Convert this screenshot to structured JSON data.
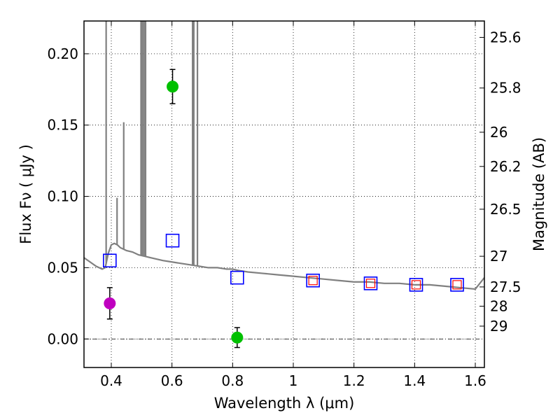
{
  "chart_data": {
    "type": "scatter",
    "xlabel": "Wavelength  λ (μm)",
    "ylabel": "Flux  Fν  ( μJy )",
    "y2label": "Magnitude (AB)",
    "xlim": [
      0.31,
      1.63
    ],
    "ylim": [
      -0.02,
      0.223
    ],
    "grid": true,
    "x_ticks": [
      0.4,
      0.6,
      0.8,
      1.0,
      1.2,
      1.4,
      1.6
    ],
    "x_tick_labels": [
      "0.4",
      "0.6",
      "0.8",
      "1",
      "1.2",
      "1.4",
      "1.6"
    ],
    "y_ticks": [
      0.0,
      0.05,
      0.1,
      0.15,
      0.2
    ],
    "y_tick_labels": [
      "0.00",
      "0.05",
      "0.10",
      "0.15",
      "0.20"
    ],
    "y2_ticks": [
      {
        "flux": 0.2115,
        "label": "25.6"
      },
      {
        "flux": 0.176,
        "label": "25.8"
      },
      {
        "flux": 0.145,
        "label": "26"
      },
      {
        "flux": 0.121,
        "label": "26.2"
      },
      {
        "flux": 0.091,
        "label": "26.5"
      },
      {
        "flux": 0.058,
        "label": "27"
      },
      {
        "flux": 0.0365,
        "label": "27.5"
      },
      {
        "flux": 0.023,
        "label": "28"
      },
      {
        "flux": 0.009,
        "label": "29"
      }
    ],
    "series": [
      {
        "name": "model spectrum",
        "kind": "line",
        "color": "#808080",
        "x": [
          0.31,
          0.33,
          0.35,
          0.37,
          0.38,
          0.39,
          0.4,
          0.41,
          0.42,
          0.43,
          0.44,
          0.45,
          0.47,
          0.49,
          0.51,
          0.53,
          0.55,
          0.57,
          0.6,
          0.63,
          0.66,
          0.69,
          0.72,
          0.75,
          0.78,
          0.8,
          0.82,
          0.85,
          0.9,
          0.95,
          1.0,
          1.05,
          1.1,
          1.15,
          1.2,
          1.25,
          1.3,
          1.35,
          1.4,
          1.45,
          1.5,
          1.55,
          1.6,
          1.63
        ],
        "y": [
          0.057,
          0.054,
          0.051,
          0.049,
          0.05,
          0.06,
          0.066,
          0.067,
          0.066,
          0.064,
          0.063,
          0.062,
          0.061,
          0.059,
          0.058,
          0.057,
          0.056,
          0.055,
          0.054,
          0.053,
          0.052,
          0.051,
          0.05,
          0.05,
          0.049,
          0.049,
          0.048,
          0.047,
          0.046,
          0.045,
          0.044,
          0.043,
          0.042,
          0.041,
          0.04,
          0.04,
          0.039,
          0.039,
          0.038,
          0.038,
          0.037,
          0.036,
          0.035,
          0.043
        ]
      },
      {
        "name": "emission lines",
        "kind": "spikes",
        "color": "#808080",
        "x": [
          0.383,
          0.419,
          0.441,
          0.498,
          0.503,
          0.508,
          0.513,
          0.668,
          0.672,
          0.684
        ],
        "y": [
          0.223,
          0.098,
          0.151,
          0.223,
          0.223,
          0.223,
          0.223,
          0.223,
          0.223,
          0.223
        ]
      },
      {
        "name": "detections (magenta)",
        "kind": "errorbar",
        "color": "#bf00bf",
        "x": [
          0.395
        ],
        "y": [
          0.025
        ],
        "yerr": [
          0.011
        ]
      },
      {
        "name": "detections (green)",
        "kind": "errorbar",
        "color": "#00c000",
        "x": [
          0.602,
          0.815
        ],
        "y": [
          0.177,
          0.001
        ],
        "yerr": [
          0.012,
          0.007
        ]
      },
      {
        "name": "model photometry (blue squares)",
        "kind": "square",
        "color": "#0000ff",
        "x": [
          0.395,
          0.602,
          0.815,
          1.065,
          1.255,
          1.405,
          1.54
        ],
        "y": [
          0.055,
          0.069,
          0.043,
          0.041,
          0.039,
          0.038,
          0.038
        ]
      },
      {
        "name": "model photometry (red squares)",
        "kind": "square",
        "color": "#ff0000",
        "x": [
          1.065,
          1.255,
          1.405,
          1.54
        ],
        "y": [
          0.041,
          0.039,
          0.038,
          0.038
        ]
      }
    ]
  }
}
